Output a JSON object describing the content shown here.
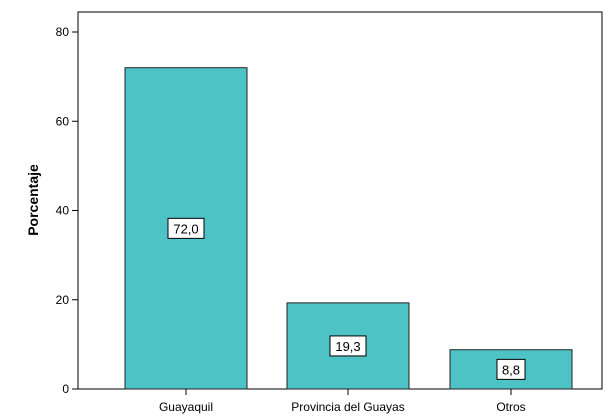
{
  "chart_data": {
    "type": "bar",
    "categories": [
      "Guayaquil",
      "Provincia del Guayas",
      "Otros"
    ],
    "values": [
      72.0,
      19.3,
      8.8
    ],
    "data_labels": [
      "72,0",
      "19,3",
      "8,8"
    ],
    "title": "",
    "xlabel": "",
    "ylabel": "Porcentaje",
    "ylim": [
      0,
      80
    ],
    "yticks": [
      0,
      20,
      40,
      60,
      80
    ],
    "grid": false,
    "legend": "none",
    "bar_color": "#4ec3c6",
    "bar_edge_color": "#222222"
  }
}
